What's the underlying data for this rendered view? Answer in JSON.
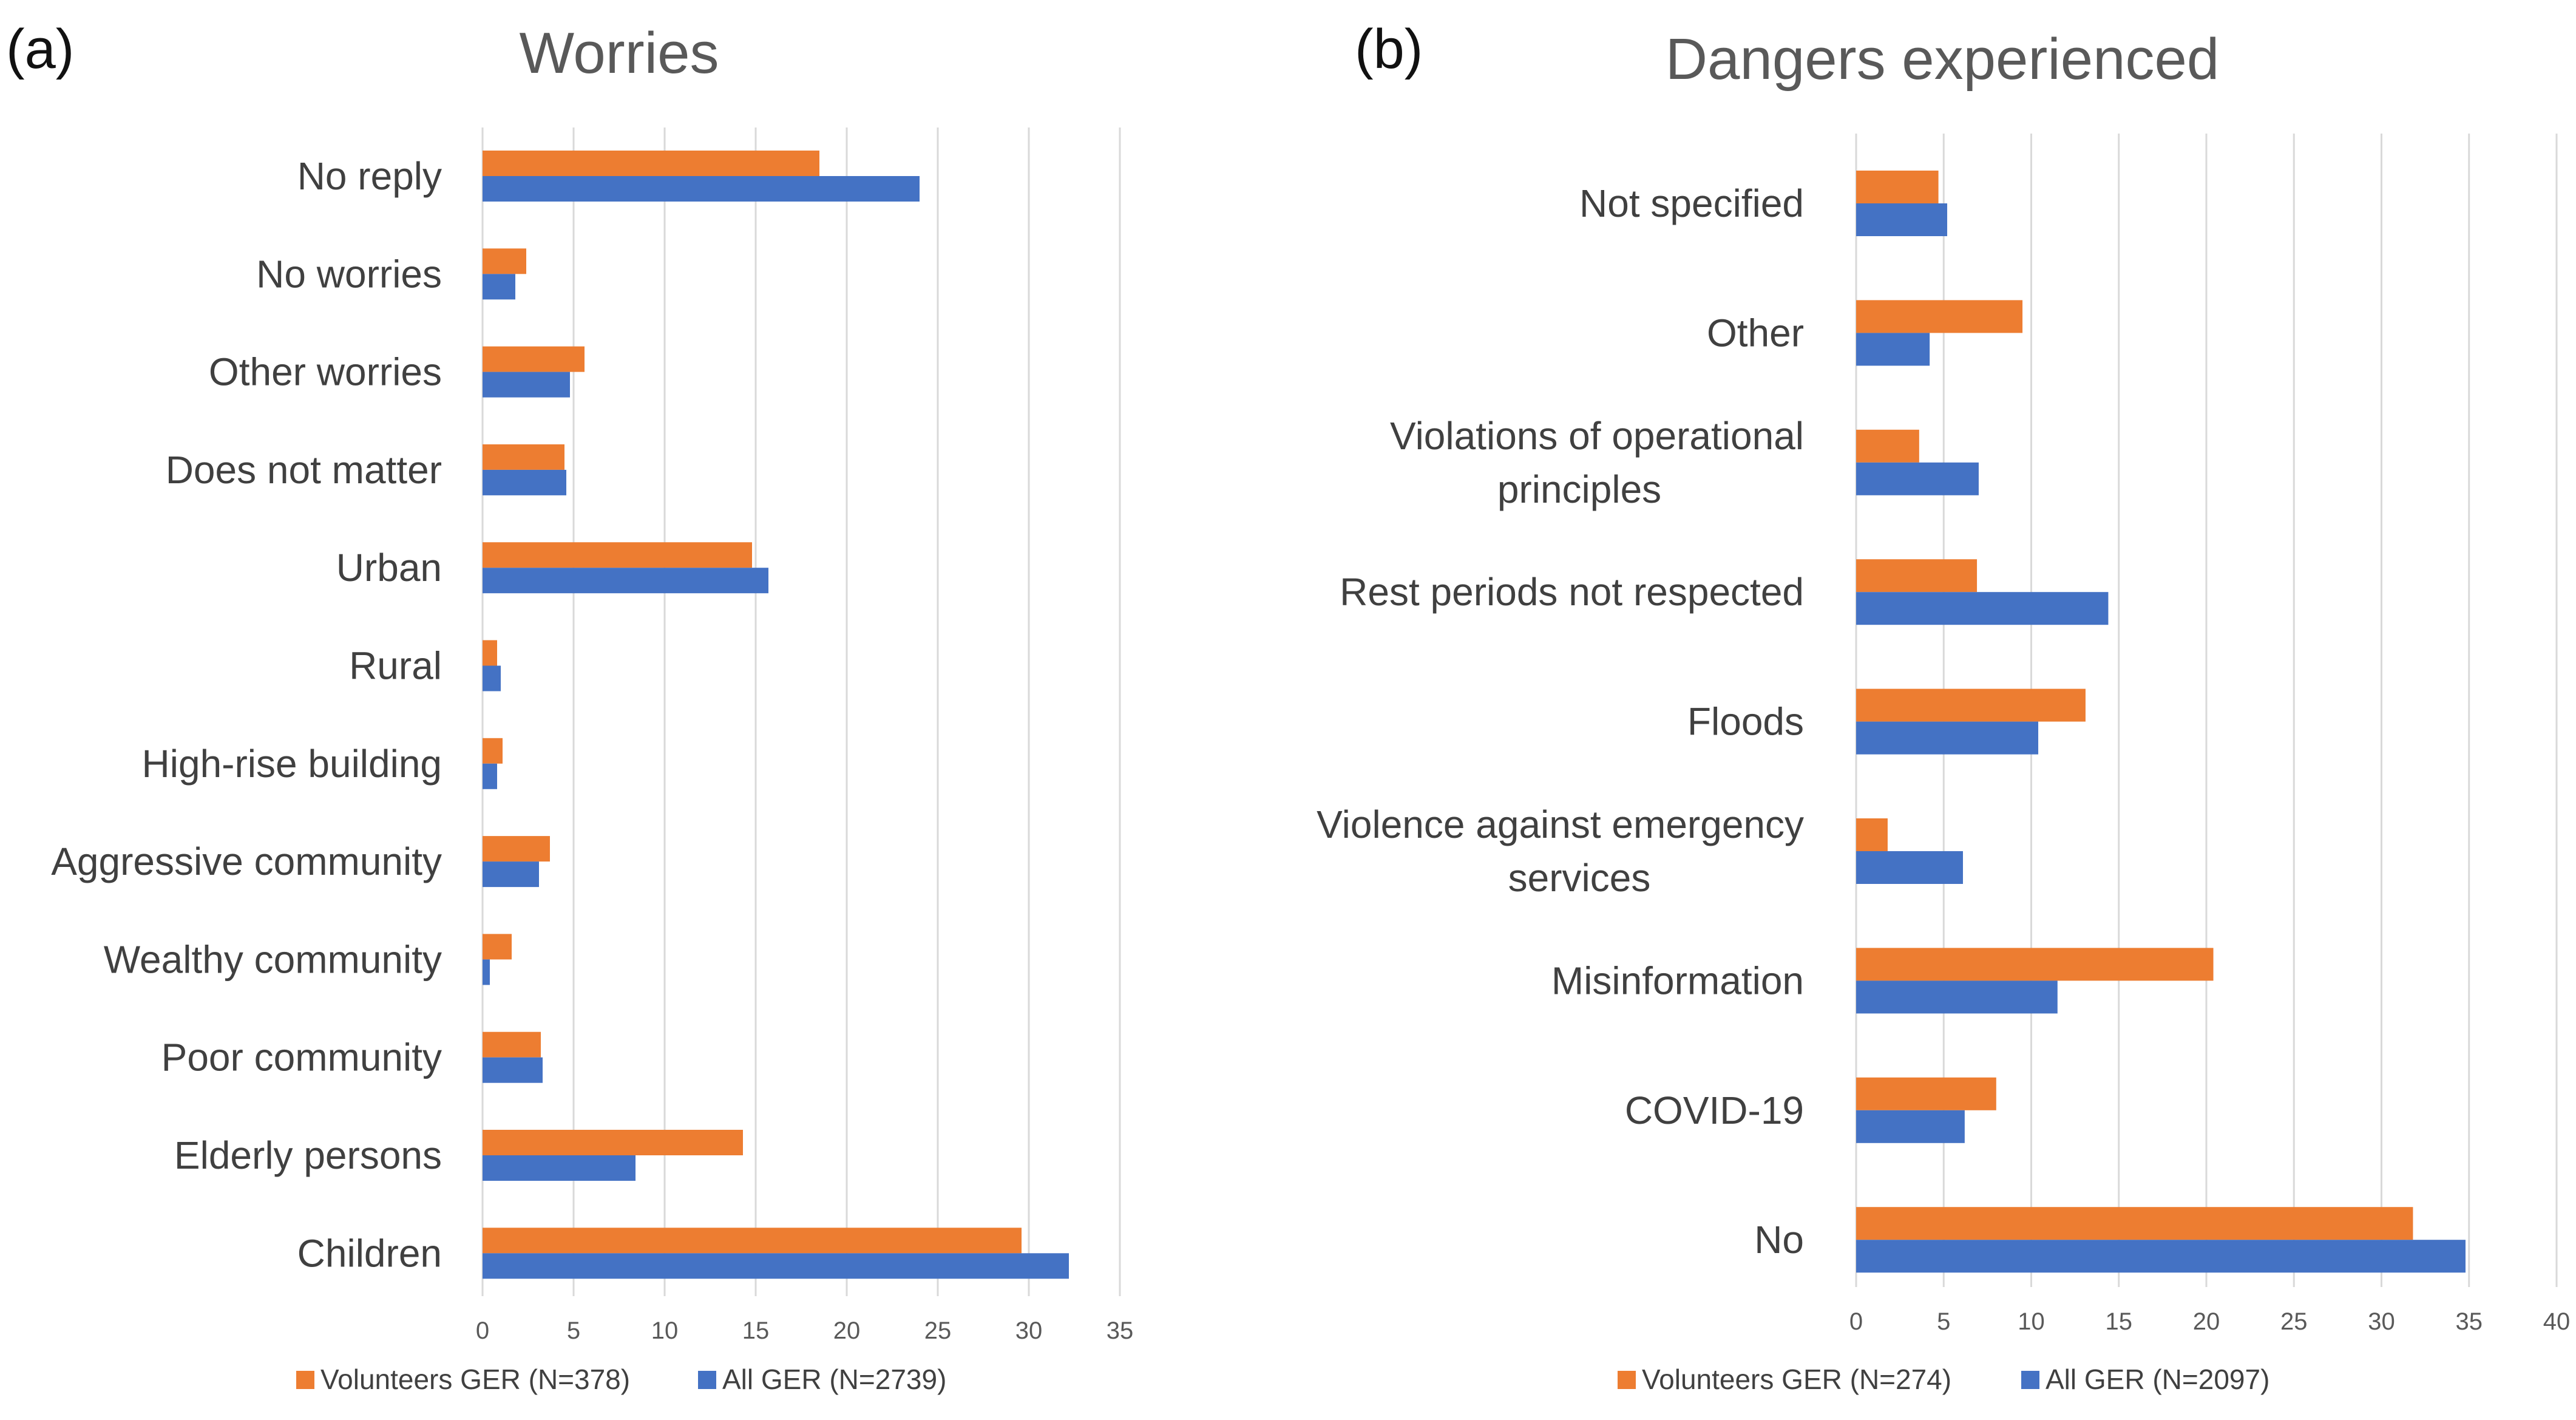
{
  "colors": {
    "volunteers": "#ED7D31",
    "all": "#4472C4"
  },
  "chart_data": [
    {
      "panel": "(a)",
      "type": "bar",
      "orientation": "horizontal",
      "title": "Worries",
      "categories": [
        "No reply",
        "No worries",
        "Other worries",
        "Does not matter",
        "Urban",
        "Rural",
        "High-rise building",
        "Aggressive community",
        "Wealthy community",
        "Poor community",
        "Elderly persons",
        "Children"
      ],
      "series": [
        {
          "name": "Volunteers GER (N=378)",
          "color": "#ED7D31",
          "values": [
            18.5,
            2.4,
            5.6,
            4.5,
            14.8,
            0.8,
            1.1,
            3.7,
            1.6,
            3.2,
            14.3,
            29.6
          ]
        },
        {
          "name": "All GER (N=2739)",
          "color": "#4472C4",
          "values": [
            24.0,
            1.8,
            4.8,
            4.6,
            15.7,
            1.0,
            0.8,
            3.1,
            0.4,
            3.3,
            8.4,
            32.2
          ]
        }
      ],
      "xlim": [
        0,
        35
      ],
      "ticks": [
        0,
        5,
        10,
        15,
        20,
        25,
        30,
        35
      ],
      "grid": true,
      "legend": "bottom"
    },
    {
      "panel": "(b)",
      "type": "bar",
      "orientation": "horizontal",
      "title": "Dangers experienced",
      "categories": [
        [
          "Not specified"
        ],
        [
          "Other"
        ],
        [
          "Violations of operational",
          "principles"
        ],
        [
          "Rest periods not respected"
        ],
        [
          "Floods"
        ],
        [
          "Violence against emergency",
          "services"
        ],
        [
          "Misinformation"
        ],
        [
          "COVID-19"
        ],
        [
          "No"
        ]
      ],
      "series": [
        {
          "name": "Volunteers GER (N=274)",
          "color": "#ED7D31",
          "values": [
            4.7,
            9.5,
            3.6,
            6.9,
            13.1,
            1.8,
            20.4,
            8.0,
            31.8
          ]
        },
        {
          "name": "All GER (N=2097)",
          "color": "#4472C4",
          "values": [
            5.2,
            4.2,
            7.0,
            14.4,
            10.4,
            6.1,
            11.5,
            6.2,
            34.8
          ]
        }
      ],
      "xlim": [
        0,
        40
      ],
      "ticks": [
        0,
        5,
        10,
        15,
        20,
        25,
        30,
        35,
        40
      ],
      "grid": true,
      "legend": "bottom"
    }
  ]
}
